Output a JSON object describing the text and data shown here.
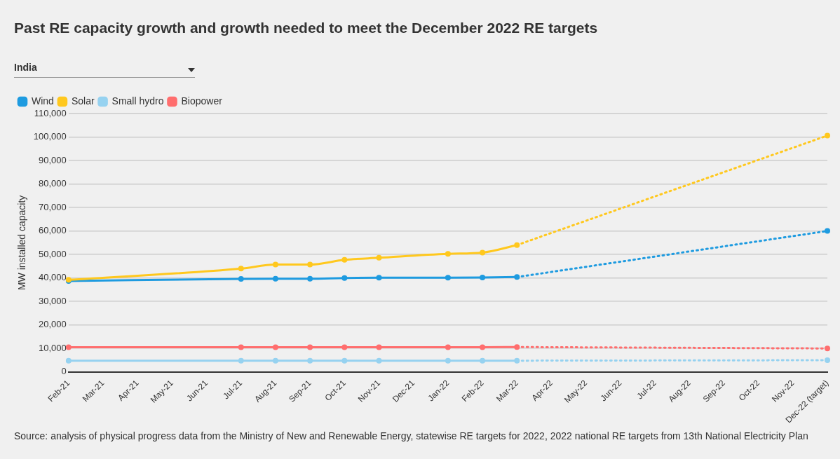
{
  "chart_data": {
    "type": "line",
    "title": "Past RE capacity growth and growth needed to meet the December 2022 RE targets",
    "subtitle": "India",
    "ylabel": "MW installed capacity",
    "categories": [
      "Feb-21",
      "Mar-21",
      "Apr-21",
      "May-21",
      "Jun-21",
      "Jul-21",
      "Aug-21",
      "Sep-21",
      "Oct-21",
      "Nov-21",
      "Dec-21",
      "Jan-22",
      "Feb-22",
      "Mar-22",
      "Apr-22",
      "May-22",
      "Jun-22",
      "Jul-22",
      "Aug-22",
      "Sep-22",
      "Oct-22",
      "Nov-22",
      "Dec-22 (target)"
    ],
    "series": [
      {
        "name": "Wind",
        "color": "#1e9be0",
        "values": [
          38700,
          null,
          null,
          null,
          null,
          39600,
          39700,
          39700,
          40000,
          40100,
          null,
          40100,
          40200,
          40400,
          null,
          null,
          null,
          null,
          null,
          null,
          null,
          null,
          null
        ]
      },
      {
        "name": "Solar",
        "color": "#ffc81e",
        "values": [
          39200,
          null,
          null,
          null,
          null,
          44000,
          45700,
          45700,
          47700,
          48600,
          null,
          50300,
          50800,
          54000,
          null,
          null,
          null,
          null,
          null,
          null,
          null,
          null,
          null
        ]
      },
      {
        "name": "Small hydro",
        "color": "#96d2f0",
        "values": [
          4800,
          null,
          null,
          null,
          null,
          4800,
          4800,
          4800,
          4800,
          4800,
          null,
          4800,
          4800,
          4800,
          null,
          null,
          null,
          null,
          null,
          null,
          null,
          null,
          null
        ]
      },
      {
        "name": "Biopower",
        "color": "#ff6e6e",
        "values": [
          10500,
          null,
          null,
          null,
          null,
          10500,
          10500,
          10500,
          10500,
          10500,
          null,
          10500,
          10500,
          10600,
          null,
          null,
          null,
          null,
          null,
          null,
          null,
          null,
          null
        ]
      },
      {
        "color": "#1e9be0",
        "line_style": "dotted",
        "values": [
          null,
          null,
          null,
          null,
          null,
          null,
          null,
          null,
          null,
          null,
          null,
          null,
          null,
          40400,
          null,
          null,
          null,
          null,
          null,
          null,
          null,
          null,
          60000
        ]
      },
      {
        "color": "#ffc81e",
        "line_style": "dotted",
        "values": [
          null,
          null,
          null,
          null,
          null,
          null,
          null,
          null,
          null,
          null,
          null,
          null,
          null,
          54000,
          null,
          null,
          null,
          null,
          null,
          null,
          null,
          null,
          100600
        ]
      },
      {
        "color": "#96d2f0",
        "line_style": "dotted",
        "values": [
          null,
          null,
          null,
          null,
          null,
          null,
          null,
          null,
          null,
          null,
          null,
          null,
          null,
          4800,
          null,
          null,
          null,
          null,
          null,
          null,
          null,
          null,
          5000
        ]
      },
      {
        "color": "#ff6e6e",
        "line_style": "dotted",
        "values": [
          null,
          null,
          null,
          null,
          null,
          null,
          null,
          null,
          null,
          null,
          null,
          null,
          null,
          10600,
          null,
          null,
          null,
          null,
          null,
          null,
          null,
          null,
          10000
        ]
      }
    ],
    "ylim": [
      0,
      110000
    ],
    "yticks": [
      0,
      {
        "value": 10000,
        "label": "10,000"
      },
      {
        "value": 20000,
        "label": "20,000"
      },
      {
        "value": 30000,
        "label": "30,000"
      },
      {
        "value": 40000,
        "label": "40,000"
      },
      {
        "value": 50000,
        "label": "50,000"
      },
      {
        "value": 60000,
        "label": "60,000"
      },
      {
        "value": 70000,
        "label": "70,000"
      },
      {
        "value": 80000,
        "label": "80,000"
      },
      {
        "value": 90000,
        "label": "90,000"
      },
      {
        "value": 100000,
        "label": "100,000"
      },
      {
        "value": 110000,
        "label": "110,000"
      }
    ],
    "grid": "y",
    "legend": "top left",
    "marker": "circle",
    "line_style": "solid",
    "annotations": [
      "Source: analysis of physical progress data from the Ministry of New and Renewable Energy, statewise RE targets for 2022, 2022 national RE targets from 13th National Electricity Plan"
    ]
  }
}
